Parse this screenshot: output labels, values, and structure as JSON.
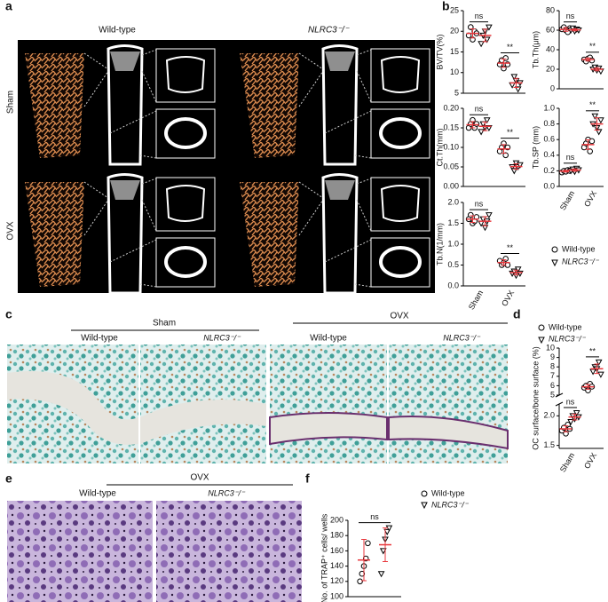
{
  "panels": {
    "a": {
      "label": "a",
      "columns": [
        "Wild-type",
        "NLRC3⁻/⁻"
      ],
      "rows": [
        "Sham",
        "OVX"
      ]
    },
    "b": {
      "label": "b",
      "legend": [
        "Wild-type",
        "NLRC3⁻/⁻"
      ]
    },
    "c": {
      "label": "c",
      "groups": [
        "Sham",
        "OVX"
      ],
      "columns": [
        "Wild-type",
        "NLRC3⁻/⁻",
        "Wild-type",
        "NLRC3⁻/⁻"
      ]
    },
    "d": {
      "label": "d",
      "legend": [
        "Wild-type",
        "NLRC3⁻/⁻"
      ]
    },
    "e": {
      "label": "e",
      "group": "OVX",
      "columns": [
        "Wild-type",
        "NLRC3⁻/⁻"
      ]
    },
    "f": {
      "label": "f",
      "legend": [
        "Wild-type",
        "NLRC3⁻/⁻"
      ]
    }
  },
  "chart_data": [
    {
      "type": "dotplot",
      "ylabel": "BV/TV(%)",
      "ylim": [
        5,
        25
      ],
      "yticks": [
        5,
        10,
        15,
        20,
        25
      ],
      "annotations": [
        "ns",
        "**"
      ],
      "series": [
        {
          "marker": "circle",
          "color": "#000000",
          "values": [
            [
              19,
              21,
              18,
              20,
              19.5
            ],
            [
              12,
              13,
              11,
              13.5,
              12
            ]
          ],
          "mean": [
            19.5,
            12.3
          ],
          "sd": [
            1.1,
            1.0
          ]
        },
        {
          "marker": "triangle",
          "color": "#000000",
          "values": [
            [
              17,
              19,
              20,
              18,
              21
            ],
            [
              7,
              9,
              8,
              6,
              7.5
            ]
          ],
          "mean": [
            19,
            7.5
          ],
          "sd": [
            1.5,
            1.1
          ]
        }
      ]
    },
    {
      "type": "dotplot",
      "ylabel": "Tb.Th(μm)",
      "ylim": [
        0,
        80
      ],
      "yticks": [
        0,
        20,
        40,
        60,
        80
      ],
      "annotations": [
        "ns",
        "**"
      ],
      "series": [
        {
          "marker": "circle",
          "color": "#000000",
          "values": [
            [
              61,
              63,
              60,
              58,
              62
            ],
            [
              30,
              28,
              31,
              32,
              29
            ]
          ],
          "mean": [
            60.8,
            30
          ],
          "sd": [
            1.9,
            1.6
          ]
        },
        {
          "marker": "triangle",
          "color": "#000000",
          "values": [
            [
              60,
              62,
              59,
              61,
              60
            ],
            [
              20,
              22,
              19,
              21,
              18
            ]
          ],
          "mean": [
            60.4,
            20
          ],
          "sd": [
            1.1,
            1.6
          ]
        }
      ]
    },
    {
      "type": "dotplot",
      "ylabel": "Ct.Th(mm)",
      "ylim": [
        0,
        0.2
      ],
      "yticks": [
        {
          "value": 0,
          "label": "0.00"
        },
        0.05,
        {
          "value": 0.1,
          "label": "0.10"
        },
        0.15,
        {
          "value": 0.2,
          "label": "0.20"
        }
      ],
      "annotations": [
        "ns",
        "**"
      ],
      "series": [
        {
          "marker": "circle",
          "color": "#000000",
          "values": [
            [
              0.15,
              0.16,
              0.17,
              0.15,
              0.16
            ],
            [
              0.09,
              0.1,
              0.11,
              0.08,
              0.1
            ]
          ],
          "mean": [
            0.158,
            0.096
          ],
          "sd": [
            0.008,
            0.011
          ]
        },
        {
          "marker": "triangle",
          "color": "#000000",
          "values": [
            [
              0.14,
              0.16,
              0.15,
              0.17,
              0.15
            ],
            [
              0.05,
              0.04,
              0.06,
              0.05,
              0.055
            ]
          ],
          "mean": [
            0.154,
            0.051
          ],
          "sd": [
            0.011,
            0.007
          ]
        }
      ]
    },
    {
      "type": "dotplot",
      "ylabel": "Tb.SP (mm)",
      "categories": [
        "Sham",
        "OVX"
      ],
      "ylim": [
        0,
        1
      ],
      "yticks": [
        {
          "value": 0,
          "label": "0.0"
        },
        0.2,
        0.4,
        0.6,
        0.8,
        {
          "value": 1,
          "label": "1.0"
        }
      ],
      "annotations": [
        "ns",
        "**"
      ],
      "series": [
        {
          "marker": "circle",
          "color": "#000000",
          "values": [
            [
              0.18,
              0.2,
              0.19,
              0.21,
              0.2
            ],
            [
              0.5,
              0.55,
              0.6,
              0.45,
              0.58
            ]
          ],
          "mean": [
            0.196,
            0.536
          ],
          "sd": [
            0.011,
            0.061
          ]
        },
        {
          "marker": "triangle",
          "color": "#000000",
          "values": [
            [
              0.2,
              0.22,
              0.19,
              0.23,
              0.21
            ],
            [
              0.8,
              0.9,
              0.75,
              0.7,
              0.85
            ]
          ],
          "mean": [
            0.21,
            0.8
          ],
          "sd": [
            0.016,
            0.079
          ]
        }
      ]
    },
    {
      "type": "dotplot",
      "ylabel": "Tb.N(1/mm)",
      "categories": [
        "Sham",
        "OVX"
      ],
      "ylim": [
        0,
        2
      ],
      "yticks": [
        {
          "value": 0,
          "label": "0.0"
        },
        0.5,
        {
          "value": 1,
          "label": "1.0"
        },
        1.5,
        {
          "value": 2,
          "label": "2.0"
        }
      ],
      "annotations": [
        "ns",
        "**"
      ],
      "series": [
        {
          "marker": "circle",
          "color": "#000000",
          "values": [
            [
              1.6,
              1.7,
              1.5,
              1.55,
              1.65
            ],
            [
              0.6,
              0.5,
              0.55,
              0.65,
              0.5
            ]
          ],
          "mean": [
            1.6,
            0.56
          ],
          "sd": [
            0.08,
            0.065
          ]
        },
        {
          "marker": "triangle",
          "color": "#000000",
          "values": [
            [
              1.5,
              1.6,
              1.4,
              1.55,
              1.7
            ],
            [
              0.3,
              0.35,
              0.25,
              0.4,
              0.3
            ]
          ],
          "mean": [
            1.55,
            0.32
          ],
          "sd": [
            0.11,
            0.057
          ]
        }
      ]
    },
    {
      "type": "dotplot",
      "ylabel": "OC surface/bone surface (%)",
      "categories": [
        "Sham",
        "OVX"
      ],
      "ylim": [
        5,
        10
      ],
      "yticks": [
        5,
        6,
        7,
        8,
        9,
        10
      ],
      "ylim_lower": [
        1.45,
        2.2
      ],
      "yticks_lower": [
        1.5,
        {
          "value": 2,
          "label": "2.0"
        }
      ],
      "annotations": [
        "ns",
        "**"
      ],
      "series": [
        {
          "marker": "circle",
          "color": "#000000",
          "values": [
            [
              1.75,
              1.8,
              1.7,
              1.85,
              1.78
            ],
            [
              5.8,
              6,
              5.5,
              6.2,
              5.9
            ]
          ],
          "mean": [
            1.78,
            5.88
          ],
          "sd": [
            0.05,
            0.25
          ]
        },
        {
          "marker": "triangle",
          "color": "#000000",
          "values": [
            [
              1.9,
              2,
              1.95,
              2.05,
              1.98
            ],
            [
              7.5,
              8,
              7.8,
              8.5,
              7.2
            ]
          ],
          "mean": [
            1.98,
            7.8
          ],
          "sd": [
            0.05,
            0.5
          ]
        }
      ]
    },
    {
      "type": "dotplot",
      "ylabel": "No. of TRAP⁺ cells/ wells",
      "ylim": [
        100,
        200
      ],
      "yticks": [
        100,
        120,
        140,
        160,
        180,
        200
      ],
      "annotations": [
        "ns"
      ],
      "series": [
        {
          "marker": "circle",
          "color": "#000000",
          "values": [
            [
              120,
              130,
              140,
              150,
              170
            ]
          ],
          "mean": [
            148
          ],
          "sd": [
            27
          ]
        },
        {
          "marker": "triangle",
          "color": "#000000",
          "values": [
            [
              130,
              160,
              175,
              185,
              190
            ]
          ],
          "mean": [
            168
          ],
          "sd": [
            22
          ]
        }
      ]
    }
  ]
}
